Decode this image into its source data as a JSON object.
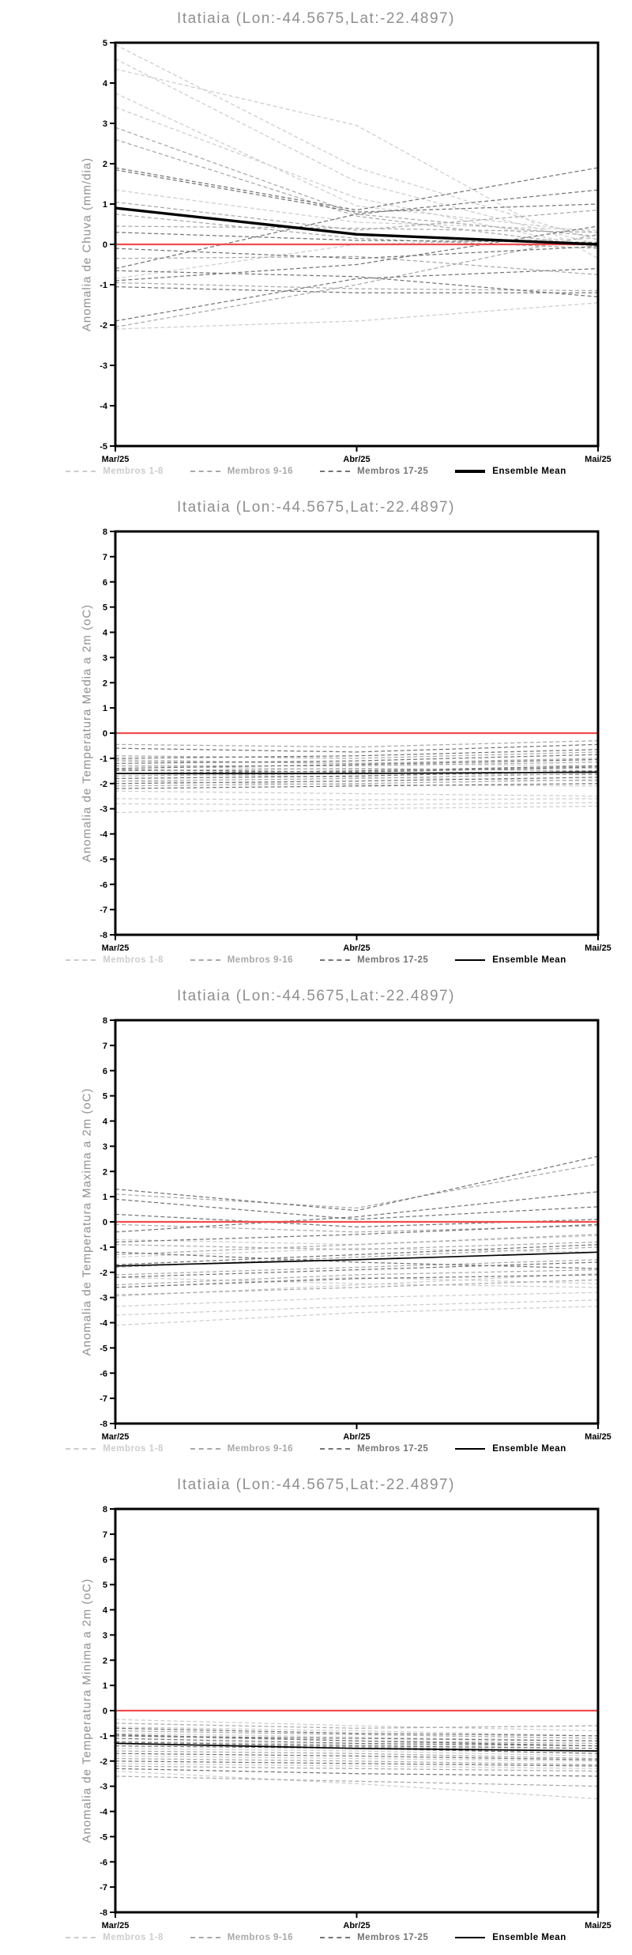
{
  "colors": {
    "membros_1_8": "#cdcdcd",
    "membros_9_16": "#a9a9a9",
    "membros_17_25": "#757575",
    "ensemble_mean": "#000000",
    "reference_line": "#f04d4d",
    "title_text": "#8f8f8f",
    "tick_text": "#000000"
  },
  "chart_data": [
    {
      "type": "line",
      "title": "Itatiaia (Lon:-44.5675,Lat:-22.4897)",
      "ylabel": "Anomalia de Chuva (mm/dia)",
      "ylim": [
        -5,
        5
      ],
      "yticks": [
        5,
        4,
        3,
        2,
        1,
        0,
        -1,
        -2,
        -3,
        -4,
        -5
      ],
      "x_labels": [
        "Mar/25",
        "Abr/25",
        "Mai/25"
      ],
      "grid": false,
      "legend_position": "bottom",
      "mean_stroke_width": 3.4,
      "legend": [
        {
          "label": "Membros 1-8",
          "group": "membros_1_8"
        },
        {
          "label": "Membros 9-16",
          "group": "membros_9_16"
        },
        {
          "label": "Membros 17-25",
          "group": "membros_17_25"
        },
        {
          "label": "Ensemble Mean",
          "group": "ensemble_mean"
        }
      ],
      "series": [
        {
          "name": "Membros 1-8",
          "group": "membros_1_8",
          "style": "dashed",
          "lines": [
            [
              4.95,
              1.9,
              0.1
            ],
            [
              4.6,
              1.55,
              0.0
            ],
            [
              4.35,
              2.95,
              -0.35
            ],
            [
              3.75,
              0.95,
              0.3
            ],
            [
              3.4,
              1.15,
              -0.1
            ],
            [
              1.35,
              0.55,
              0.35
            ],
            [
              -0.85,
              0.0,
              0.15
            ],
            [
              -2.1,
              -1.9,
              -1.45
            ]
          ]
        },
        {
          "name": "Membros 9-16",
          "group": "membros_9_16",
          "style": "dashed",
          "lines": [
            [
              2.9,
              0.75,
              0.2
            ],
            [
              2.6,
              0.7,
              -0.05
            ],
            [
              1.05,
              0.35,
              0.85
            ],
            [
              0.75,
              0.15,
              -0.1
            ],
            [
              0.45,
              0.4,
              0.3
            ],
            [
              -0.35,
              -0.3,
              -0.75
            ],
            [
              -0.95,
              -1.1,
              -1.15
            ],
            [
              -2.05,
              -1.0,
              0.25
            ]
          ]
        },
        {
          "name": "Membros 17-25",
          "group": "membros_17_25",
          "style": "dashed",
          "lines": [
            [
              1.9,
              0.85,
              1.9
            ],
            [
              1.85,
              0.8,
              1.0
            ],
            [
              0.3,
              0.1,
              0.05
            ],
            [
              -0.1,
              -0.35,
              -0.05
            ],
            [
              -0.6,
              0.75,
              1.35
            ],
            [
              -0.9,
              -0.5,
              0.45
            ],
            [
              -1.05,
              -1.2,
              -1.2
            ],
            [
              -1.9,
              -0.85,
              -0.6
            ],
            [
              -0.65,
              -0.8,
              -1.3
            ]
          ]
        },
        {
          "name": "Reference",
          "group": "reference_line",
          "style": "solid",
          "lines": [
            [
              0,
              0,
              0
            ]
          ]
        },
        {
          "name": "Ensemble Mean",
          "group": "ensemble_mean",
          "style": "solid",
          "lines": [
            [
              0.9,
              0.25,
              0.0
            ]
          ]
        }
      ]
    },
    {
      "type": "line",
      "title": "Itatiaia (Lon:-44.5675,Lat:-22.4897)",
      "ylabel": "Anomalia de Temperatura Media a 2m (oC)",
      "ylim": [
        -8,
        8
      ],
      "yticks": [
        8,
        7,
        6,
        5,
        4,
        3,
        2,
        1,
        0,
        -1,
        -2,
        -3,
        -4,
        -5,
        -6,
        -7,
        -8
      ],
      "x_labels": [
        "Mar/25",
        "Abr/25",
        "Mai/25"
      ],
      "grid": false,
      "legend_position": "bottom",
      "mean_stroke_width": 1.7,
      "legend": [
        {
          "label": "Membros 1-8",
          "group": "membros_1_8"
        },
        {
          "label": "Membros 9-16",
          "group": "membros_9_16"
        },
        {
          "label": "Membros 17-25",
          "group": "membros_17_25"
        },
        {
          "label": "Ensemble Mean",
          "group": "ensemble_mean"
        }
      ],
      "series": [
        {
          "name": "Membros 1-8",
          "group": "membros_1_8",
          "style": "dashed",
          "lines": [
            [
              -2.6,
              -2.65,
              -2.6
            ],
            [
              -2.8,
              -2.85,
              -2.75
            ],
            [
              -3.15,
              -3.0,
              -2.9
            ],
            [
              -2.3,
              -2.4,
              -2.5
            ],
            [
              -1.9,
              -2.05,
              -2.1
            ],
            [
              -1.6,
              -1.75,
              -1.9
            ],
            [
              -1.3,
              -1.45,
              -1.4
            ],
            [
              -1.05,
              -1.2,
              -1.3
            ]
          ]
        },
        {
          "name": "Membros 9-16",
          "group": "membros_9_16",
          "style": "dashed",
          "lines": [
            [
              -0.45,
              -0.55,
              -0.3
            ],
            [
              -0.9,
              -1.0,
              -0.75
            ],
            [
              -1.1,
              -1.2,
              -1.0
            ],
            [
              -1.3,
              -1.3,
              -1.15
            ],
            [
              -1.5,
              -1.4,
              -1.5
            ],
            [
              -1.7,
              -1.6,
              -1.65
            ],
            [
              -1.9,
              -1.8,
              -1.6
            ],
            [
              -2.1,
              -2.0,
              -1.85
            ]
          ]
        },
        {
          "name": "Membros 17-25",
          "group": "membros_17_25",
          "style": "dashed",
          "lines": [
            [
              -0.6,
              -0.75,
              -0.45
            ],
            [
              -1.0,
              -0.9,
              -0.65
            ],
            [
              -1.2,
              -1.1,
              -0.85
            ],
            [
              -1.4,
              -1.25,
              -1.05
            ],
            [
              -1.6,
              -1.5,
              -1.3
            ],
            [
              -1.8,
              -1.7,
              -1.5
            ],
            [
              -2.0,
              -1.9,
              -1.75
            ],
            [
              -2.2,
              -2.1,
              -2.0
            ],
            [
              -1.45,
              -1.55,
              -1.35
            ]
          ]
        },
        {
          "name": "Reference",
          "group": "reference_line",
          "style": "solid",
          "lines": [
            [
              0,
              0,
              0
            ]
          ]
        },
        {
          "name": "Ensemble Mean",
          "group": "ensemble_mean",
          "style": "solid",
          "lines": [
            [
              -1.6,
              -1.6,
              -1.55
            ]
          ]
        }
      ]
    },
    {
      "type": "line",
      "title": "Itatiaia (Lon:-44.5675,Lat:-22.4897)",
      "ylabel": "Anomalia de Temperatura Maxima a 2m (oC)",
      "ylim": [
        -8,
        8
      ],
      "yticks": [
        8,
        7,
        6,
        5,
        4,
        3,
        2,
        1,
        0,
        -1,
        -2,
        -3,
        -4,
        -5,
        -6,
        -7,
        -8
      ],
      "x_labels": [
        "Mar/25",
        "Abr/25",
        "Mai/25"
      ],
      "grid": false,
      "legend_position": "bottom",
      "mean_stroke_width": 1.7,
      "legend": [
        {
          "label": "Membros 1-8",
          "group": "membros_1_8"
        },
        {
          "label": "Membros 9-16",
          "group": "membros_9_16"
        },
        {
          "label": "Membros 17-25",
          "group": "membros_17_25"
        },
        {
          "label": "Ensemble Mean",
          "group": "ensemble_mean"
        }
      ],
      "series": [
        {
          "name": "Membros 1-8",
          "group": "membros_1_8",
          "style": "dashed",
          "lines": [
            [
              -2.95,
              -2.5,
              -2.05
            ],
            [
              -3.35,
              -3.0,
              -2.8
            ],
            [
              -3.7,
              -3.35,
              -3.1
            ],
            [
              -4.1,
              -3.6,
              -3.35
            ],
            [
              -2.6,
              -2.2,
              -2.45
            ],
            [
              -2.2,
              -2.45,
              -2.6
            ],
            [
              -1.4,
              -1.05,
              -1.2
            ],
            [
              -0.7,
              -0.9,
              -0.55
            ]
          ]
        },
        {
          "name": "Membros 9-16",
          "group": "membros_9_16",
          "style": "dashed",
          "lines": [
            [
              1.1,
              0.55,
              2.3
            ],
            [
              -0.1,
              -0.4,
              -0.15
            ],
            [
              -0.9,
              -1.1,
              -0.8
            ],
            [
              -1.3,
              -0.9,
              -0.5
            ],
            [
              -1.8,
              -1.4,
              -1.0
            ],
            [
              -2.1,
              -1.8,
              -1.5
            ],
            [
              -2.5,
              -2.1,
              -1.9
            ],
            [
              -2.9,
              -2.6,
              -2.3
            ]
          ]
        },
        {
          "name": "Membros 17-25",
          "group": "membros_17_25",
          "style": "dashed",
          "lines": [
            [
              1.3,
              0.45,
              2.6
            ],
            [
              0.9,
              0.1,
              0.6
            ],
            [
              0.3,
              -0.2,
              0.1
            ],
            [
              -0.4,
              0.2,
              1.2
            ],
            [
              -0.8,
              -0.5,
              -0.1
            ],
            [
              -1.2,
              -1.6,
              -1.85
            ],
            [
              -1.7,
              -1.3,
              -0.9
            ],
            [
              -2.2,
              -1.9,
              -1.6
            ],
            [
              -2.6,
              -2.25,
              -2.1
            ]
          ]
        },
        {
          "name": "Reference",
          "group": "reference_line",
          "style": "solid",
          "lines": [
            [
              0,
              0,
              0
            ]
          ]
        },
        {
          "name": "Ensemble Mean",
          "group": "ensemble_mean",
          "style": "solid",
          "lines": [
            [
              -1.75,
              -1.5,
              -1.2
            ]
          ]
        }
      ]
    },
    {
      "type": "line",
      "title": "Itatiaia (Lon:-44.5675,Lat:-22.4897)",
      "ylabel": "Anomalia de Temperatura Minima a 2m (oC)",
      "ylim": [
        -8,
        8
      ],
      "yticks": [
        8,
        7,
        6,
        5,
        4,
        3,
        2,
        1,
        0,
        -1,
        -2,
        -3,
        -4,
        -5,
        -6,
        -7,
        -8
      ],
      "x_labels": [
        "Mar/25",
        "Abr/25",
        "Mai/25"
      ],
      "grid": false,
      "legend_position": "bottom",
      "mean_stroke_width": 1.7,
      "legend": [
        {
          "label": "Membros 1-8",
          "group": "membros_1_8"
        },
        {
          "label": "Membros 9-16",
          "group": "membros_9_16"
        },
        {
          "label": "Membros 17-25",
          "group": "membros_17_25"
        },
        {
          "label": "Ensemble Mean",
          "group": "ensemble_mean"
        }
      ],
      "series": [
        {
          "name": "Membros 1-8",
          "group": "membros_1_8",
          "style": "dashed",
          "lines": [
            [
              -0.35,
              -0.6,
              -0.8
            ],
            [
              -0.65,
              -0.8,
              -1.0
            ],
            [
              -0.9,
              -1.05,
              -1.2
            ],
            [
              -1.2,
              -1.35,
              -1.5
            ],
            [
              -1.5,
              -1.6,
              -1.8
            ],
            [
              -1.8,
              -1.9,
              -2.0
            ],
            [
              -2.1,
              -2.2,
              -2.3
            ],
            [
              -2.4,
              -2.9,
              -3.5
            ]
          ]
        },
        {
          "name": "Membros 9-16",
          "group": "membros_9_16",
          "style": "dashed",
          "lines": [
            [
              -0.5,
              -0.7,
              -0.6
            ],
            [
              -0.8,
              -0.95,
              -1.1
            ],
            [
              -1.0,
              -1.2,
              -1.3
            ],
            [
              -1.3,
              -1.45,
              -1.6
            ],
            [
              -1.6,
              -1.7,
              -1.9
            ],
            [
              -1.9,
              -2.0,
              -2.15
            ],
            [
              -2.2,
              -2.3,
              -2.4
            ],
            [
              -2.6,
              -2.8,
              -3.0
            ]
          ]
        },
        {
          "name": "Membros 17-25",
          "group": "membros_17_25",
          "style": "dashed",
          "lines": [
            [
              -0.7,
              -0.9,
              -1.0
            ],
            [
              -1.0,
              -1.1,
              -1.2
            ],
            [
              -1.1,
              -1.3,
              -1.4
            ],
            [
              -1.4,
              -1.5,
              -1.7
            ],
            [
              -1.7,
              -1.8,
              -1.95
            ],
            [
              -2.0,
              -2.1,
              -2.2
            ],
            [
              -2.3,
              -2.5,
              -2.6
            ],
            [
              -1.25,
              -1.4,
              -1.5
            ],
            [
              -0.95,
              -1.2,
              -1.4
            ]
          ]
        },
        {
          "name": "Reference",
          "group": "reference_line",
          "style": "solid",
          "lines": [
            [
              0,
              0,
              0
            ]
          ]
        },
        {
          "name": "Ensemble Mean",
          "group": "ensemble_mean",
          "style": "solid",
          "lines": [
            [
              -1.3,
              -1.5,
              -1.6
            ]
          ]
        }
      ]
    }
  ]
}
